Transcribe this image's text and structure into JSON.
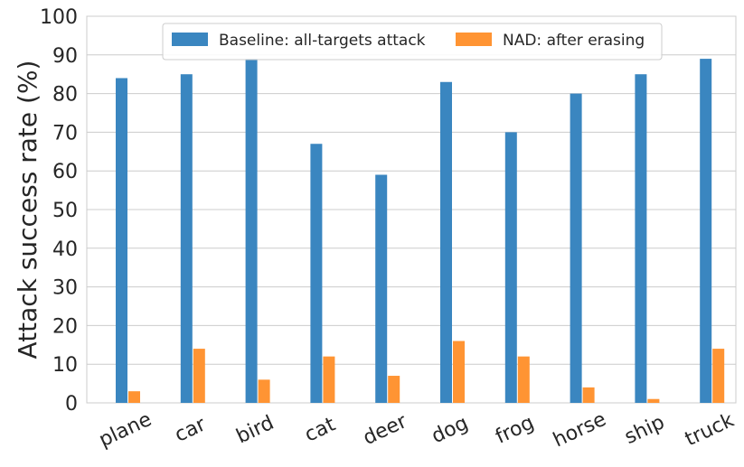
{
  "chart_data": {
    "type": "bar",
    "categories": [
      "plane",
      "car",
      "bird",
      "cat",
      "deer",
      "dog",
      "frog",
      "horse",
      "ship",
      "truck"
    ],
    "series": [
      {
        "name": "Baseline: all-targets attack",
        "color": "#3a86c0",
        "values": [
          84,
          85,
          89,
          67,
          59,
          83,
          70,
          80,
          85,
          89
        ]
      },
      {
        "name": "NAD: after erasing",
        "color": "#ff9433",
        "values": [
          3,
          14,
          6,
          12,
          7,
          16,
          12,
          4,
          1,
          14
        ]
      }
    ],
    "ylabel": "Attack success rate (%)",
    "xlabel": "",
    "ylim": [
      0,
      100
    ],
    "yticks": [
      0,
      10,
      20,
      30,
      40,
      50,
      60,
      70,
      80,
      90,
      100
    ],
    "grid": true,
    "legend_position": "top-center"
  }
}
